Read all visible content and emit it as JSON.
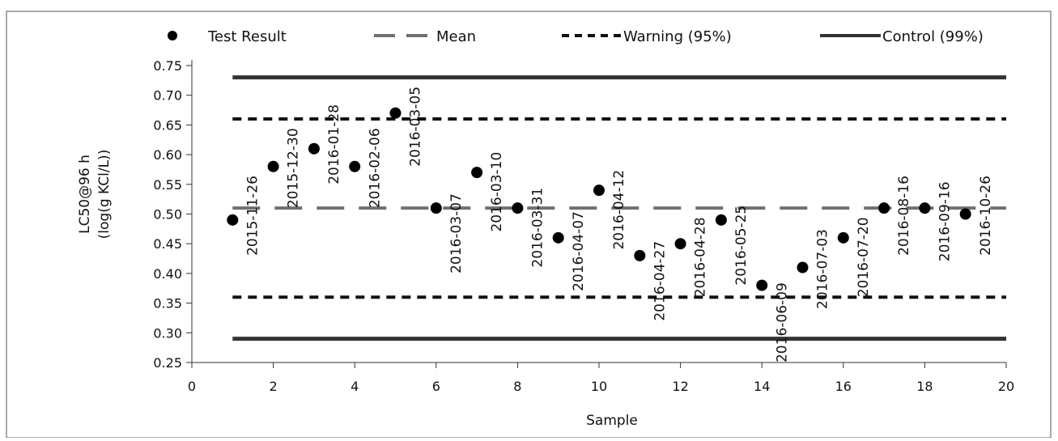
{
  "chart_data": {
    "type": "scatter",
    "xlabel": "Sample",
    "ylabel_lines": [
      "LC50@96 h",
      "(log(g KCl/L))"
    ],
    "xlim": [
      0,
      20
    ],
    "ylim": [
      0.25,
      0.75
    ],
    "xticks": [
      "0",
      "2",
      "4",
      "6",
      "8",
      "10",
      "12",
      "14",
      "16",
      "18",
      "20"
    ],
    "yticks": [
      "0.25",
      "0.30",
      "0.35",
      "0.40",
      "0.45",
      "0.50",
      "0.55",
      "0.60",
      "0.65",
      "0.70",
      "0.75"
    ],
    "grid": false,
    "legend_position": "top",
    "series": [
      {
        "name": "Test Result",
        "style": "marker",
        "color": "#000000",
        "x": [
          1,
          2,
          3,
          4,
          5,
          6,
          7,
          8,
          9,
          10,
          11,
          12,
          13,
          14,
          15,
          16,
          17,
          18,
          19
        ],
        "y": [
          0.49,
          0.58,
          0.61,
          0.58,
          0.67,
          0.51,
          0.57,
          0.51,
          0.46,
          0.54,
          0.43,
          0.45,
          0.49,
          0.38,
          0.41,
          0.46,
          0.51,
          0.51,
          0.5
        ],
        "labels": [
          "2015-11-26",
          "2015-12-30",
          "2016-01-28",
          "2016-02-06",
          "2016-03-05",
          "2016-03-07",
          "2016-03-10",
          "2016-03-31",
          "2016-04-07",
          "2016-04-12",
          "2016-04-27",
          "2016-04-28",
          "2016-05-25",
          "2016-06-09",
          "2016-07-03",
          "2016-07-20",
          "2016-08-16",
          "2016-09-16",
          "2016-10-26"
        ]
      },
      {
        "name": "Mean",
        "style": "long-dash",
        "color": "#707070",
        "value": 0.51,
        "x_range": [
          1,
          20
        ]
      },
      {
        "name": "Warning (95%)",
        "style": "short-dash",
        "color": "#111111",
        "values": [
          0.66,
          0.36
        ],
        "x_range": [
          1,
          20
        ]
      },
      {
        "name": "Control (99%)",
        "style": "solid",
        "color": "#333333",
        "values": [
          0.73,
          0.29
        ],
        "x_range": [
          1,
          20
        ]
      }
    ]
  }
}
